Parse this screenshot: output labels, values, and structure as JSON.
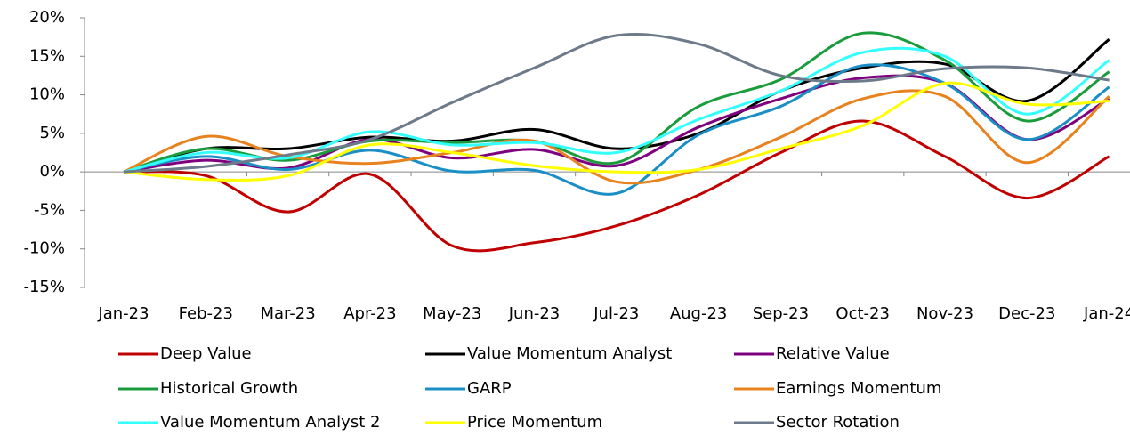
{
  "chart_data": {
    "type": "line",
    "categories": [
      "Jan-23",
      "Feb-23",
      "Mar-23",
      "Apr-23",
      "May-23",
      "Jun-23",
      "Jul-23",
      "Aug-23",
      "Sep-23",
      "Oct-23",
      "Nov-23",
      "Dec-23",
      "Jan-24"
    ],
    "ylim": [
      -15,
      20
    ],
    "yticks": [
      {
        "value": -15,
        "label": "-15%"
      },
      {
        "value": -10,
        "label": "-10%"
      },
      {
        "value": -5,
        "label": "-5%"
      },
      {
        "value": 0,
        "label": "0%"
      },
      {
        "value": 5,
        "label": "5%"
      },
      {
        "value": 10,
        "label": "10%"
      },
      {
        "value": 15,
        "label": "15%"
      },
      {
        "value": 20,
        "label": "20%"
      }
    ],
    "legend": "bottom",
    "smooth": true,
    "series": [
      {
        "name": "Deep Value",
        "color": "#c00000",
        "values": [
          0,
          -0.5,
          -5.2,
          -0.3,
          -9.6,
          -9.2,
          -7.0,
          -3.0,
          2.5,
          6.6,
          2.0,
          -3.4,
          2.0
        ]
      },
      {
        "name": "Value Momentum Analyst",
        "color": "#000000",
        "values": [
          0,
          3.0,
          3.0,
          4.5,
          4.0,
          5.5,
          3.0,
          5.0,
          10.5,
          13.5,
          14.0,
          9.2,
          17.2
        ]
      },
      {
        "name": "Relative Value",
        "color": "#7f007f",
        "values": [
          0,
          1.5,
          0.5,
          4.2,
          1.8,
          2.9,
          0.8,
          5.8,
          9.5,
          12.2,
          11.5,
          4.2,
          9.5
        ]
      },
      {
        "name": "Historical Growth",
        "color": "#1a9c3c",
        "values": [
          0,
          3.0,
          1.5,
          4.0,
          3.8,
          4.0,
          1.2,
          8.5,
          12.0,
          18.0,
          14.5,
          6.6,
          13.0
        ]
      },
      {
        "name": "GARP",
        "color": "#1b8ec6",
        "values": [
          0,
          2.0,
          0.3,
          2.8,
          0.1,
          0.2,
          -2.8,
          4.8,
          8.5,
          13.8,
          11.5,
          4.2,
          11.0
        ]
      },
      {
        "name": "Earnings Momentum",
        "color": "#e8821e",
        "values": [
          0,
          4.6,
          2.0,
          1.1,
          2.5,
          4.0,
          -1.3,
          0.3,
          4.5,
          9.5,
          9.8,
          1.2,
          9.8
        ]
      },
      {
        "name": "Value Momentum Analyst 2",
        "color": "#33ffff",
        "values": [
          0,
          2.5,
          1.8,
          5.2,
          3.5,
          3.8,
          2.5,
          6.8,
          10.5,
          15.5,
          15.0,
          7.5,
          14.5
        ]
      },
      {
        "name": "Price Momentum",
        "color": "#ffff00",
        "values": [
          0,
          -1.0,
          -0.5,
          3.5,
          2.5,
          0.8,
          0.0,
          0.3,
          3.0,
          6.0,
          11.5,
          8.8,
          9.2
        ]
      },
      {
        "name": "Sector Rotation",
        "color": "#6d7a8a",
        "values": [
          0,
          0.7,
          2.2,
          4.2,
          9.0,
          13.5,
          17.7,
          16.6,
          12.5,
          11.8,
          13.4,
          13.5,
          11.9
        ]
      }
    ]
  }
}
